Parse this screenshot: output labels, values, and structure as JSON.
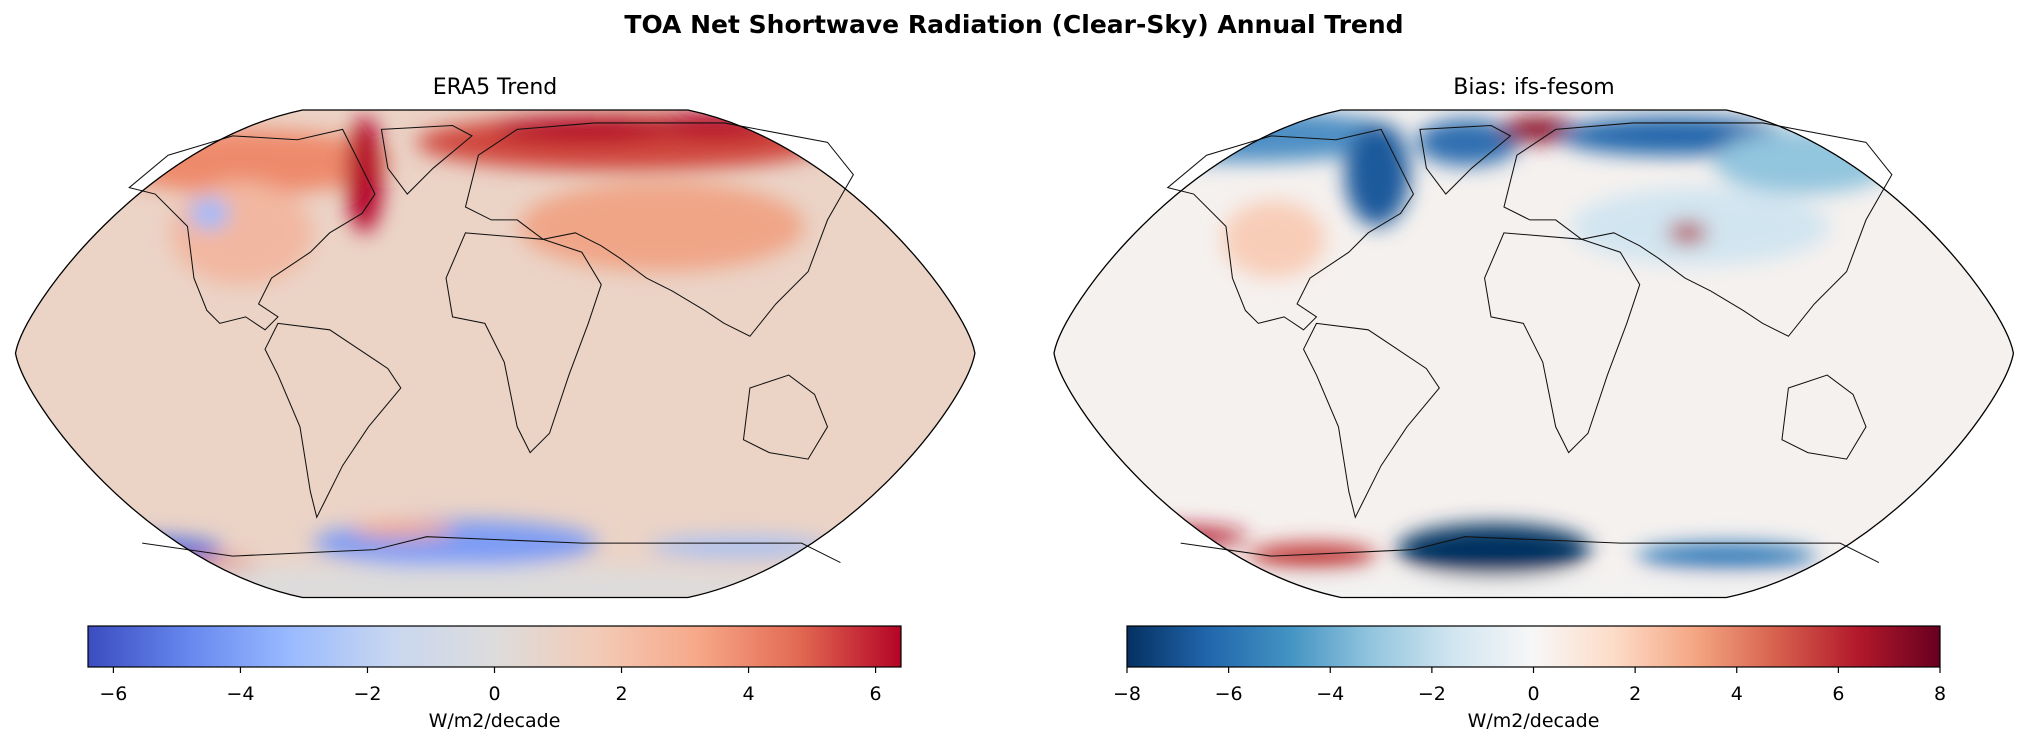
{
  "title": "TOA Net Shortwave Radiation (Clear-Sky) Annual Trend",
  "chart_data": [
    {
      "type": "heatmap",
      "projection": "robinson",
      "title": "ERA5 Trend",
      "colormap": "coolwarm",
      "colorbar": {
        "label": "W/m2/decade",
        "range": [
          -6.4,
          6.4
        ],
        "ticks": [
          -6,
          -4,
          -2,
          0,
          2,
          4,
          6
        ],
        "tick_labels": [
          "−6",
          "−4",
          "−2",
          "0",
          "2",
          "4",
          "6"
        ],
        "orientation": "horizontal",
        "colors": [
          "#3b4cc0",
          "#6788ee",
          "#9abbff",
          "#c9d7f0",
          "#dddcdc",
          "#f2cbb7",
          "#f7a889",
          "#e26952",
          "#b40426"
        ]
      },
      "features": "Mostly slightly positive (~0.5) over oceans; strong positive (>6) around Greenland, Hudson Bay, Barents/Kara and Siberian Arctic coast; negative (~-4 to -6) over Southern Ocean sea-ice zone"
    },
    {
      "type": "heatmap",
      "projection": "robinson",
      "title": "Bias: ifs-fesom",
      "colormap": "RdBu_r",
      "colorbar": {
        "label": "W/m2/decade",
        "range": [
          -8,
          8
        ],
        "ticks": [
          -8,
          -6,
          -4,
          -2,
          0,
          2,
          4,
          6,
          8
        ],
        "tick_labels": [
          "−8",
          "−6",
          "−4",
          "−2",
          "0",
          "2",
          "4",
          "6",
          "8"
        ],
        "orientation": "horizontal",
        "colors": [
          "#053061",
          "#2166ac",
          "#4393c3",
          "#92c5de",
          "#d1e5f0",
          "#f7f7f7",
          "#fddbc7",
          "#f4a582",
          "#d6604d",
          "#b2182b",
          "#67001f"
        ]
      },
      "features": "Near zero over most oceans; strong negative (<-8) over Greenland, Canadian Archipelago, Siberian coast and Weddell Sea; strong positive near Barents Sea and Antarctic coastal Pacific/Indian sectors"
    }
  ]
}
